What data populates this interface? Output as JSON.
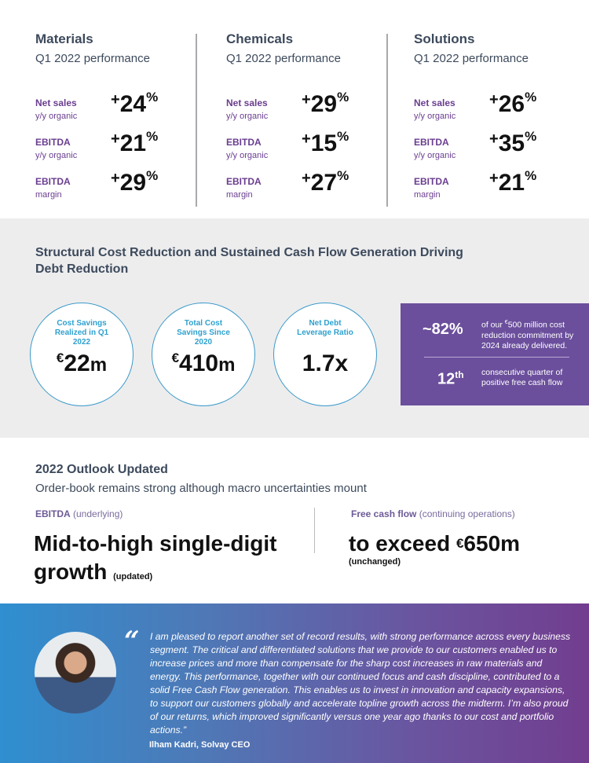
{
  "segments": [
    {
      "name": "Materials",
      "period": "Q1 2022 performance",
      "metrics": [
        {
          "label": "Net sales",
          "sublabel": "y/y organic",
          "sign": "+",
          "value": "24",
          "unit": "%"
        },
        {
          "label": "EBITDA",
          "sublabel": "y/y organic",
          "sign": "+",
          "value": "21",
          "unit": "%"
        },
        {
          "label": "EBITDA",
          "sublabel": "margin",
          "sign": "+",
          "value": "29",
          "unit": "%"
        }
      ]
    },
    {
      "name": "Chemicals",
      "period": "Q1 2022 performance",
      "metrics": [
        {
          "label": "Net sales",
          "sublabel": "y/y organic",
          "sign": "+",
          "value": "29",
          "unit": "%"
        },
        {
          "label": "EBITDA",
          "sublabel": "y/y organic",
          "sign": "+",
          "value": "15",
          "unit": "%"
        },
        {
          "label": "EBITDA",
          "sublabel": "margin",
          "sign": "+",
          "value": "27",
          "unit": "%"
        }
      ]
    },
    {
      "name": "Solutions",
      "period": "Q1 2022 performance",
      "metrics": [
        {
          "label": "Net sales",
          "sublabel": "y/y organic",
          "sign": "+",
          "value": "26",
          "unit": "%"
        },
        {
          "label": "EBITDA",
          "sublabel": "y/y organic",
          "sign": "+",
          "value": "35",
          "unit": "%"
        },
        {
          "label": "EBITDA",
          "sublabel": "margin",
          "sign": "+",
          "value": "21",
          "unit": "%"
        }
      ]
    }
  ],
  "cost": {
    "title": "Structural Cost Reduction and Sustained Cash Flow Generation Driving Debt Reduction",
    "circles": [
      {
        "label": "Cost Savings Realized in Q1 2022",
        "currency": "€",
        "value": "22",
        "unit": "m"
      },
      {
        "label": "Total Cost Savings Since 2020",
        "currency": "€",
        "value": "410",
        "unit": "m"
      },
      {
        "label": "Net Debt Leverage Ratio",
        "currency": "",
        "value": "1.7x",
        "unit": ""
      }
    ],
    "box": {
      "stat1": "~82%",
      "text1_pre": "of our ",
      "text1_cur": "€",
      "text1_rest": "500 million cost reduction commitment by 2024 already delivered.",
      "stat2": "12",
      "stat2_sup": "th",
      "text2": "consecutive quarter of positive free cash flow"
    }
  },
  "outlook": {
    "title": "2022 Outlook Updated",
    "subtitle": "Order-book remains strong although macro uncertainties mount",
    "left": {
      "label": "EBITDA",
      "qualifier": "(underlying)",
      "line1": "Mid-to-high single-digit",
      "line2": "growth",
      "note": "(updated)"
    },
    "right": {
      "label": "Free cash flow",
      "qualifier": "(continuing operations)",
      "pre": "to exceed ",
      "currency": "€",
      "value": "650m",
      "note": "(unchanged)"
    }
  },
  "quote": {
    "mark": "“",
    "text": "I am pleased to report another set of record results, with strong performance across every business segment. The critical and differentiated solutions that we provide to our customers enabled us to increase prices and more than compensate for the sharp cost increases in raw materials and energy. This performance, together with our continued focus and cash discipline, contributed to a solid Free Cash Flow generation. This enables us to invest in innovation and capacity expansions, to support our customers globally and accelerate topline growth across the midterm. I’m also proud of our returns, which improved significantly versus one year ago thanks to our cost and portfolio actions.”",
    "author": "Ilham Kadri, Solvay CEO"
  }
}
